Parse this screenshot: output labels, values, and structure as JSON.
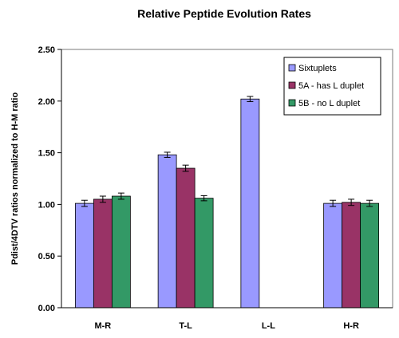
{
  "chart_data": {
    "type": "bar",
    "title": "Relative Peptide Evolution Rates",
    "xlabel": "",
    "ylabel": "Pdist/4DTV ratios  normalized to H-M ratio",
    "ylim": [
      0,
      2.5
    ],
    "ytick_values": [
      0,
      0.5,
      1,
      1.5,
      2,
      2.5
    ],
    "ytick_labels": [
      "0.00",
      "0.50",
      "1.00",
      "1.50",
      "2.00",
      "2.50"
    ],
    "categories": [
      "M-R",
      "T-L",
      "L-L",
      "H-R"
    ],
    "grid": false,
    "legend_position": "top-right",
    "series": [
      {
        "name": "Sixtuplets",
        "color": "#9999ff",
        "values": [
          1.01,
          1.48,
          2.02,
          1.01
        ],
        "errors": [
          0.03,
          0.025,
          0.025,
          0.03
        ]
      },
      {
        "name": "5A - has L duplet",
        "color": "#993366",
        "values": [
          1.05,
          1.35,
          null,
          1.02
        ],
        "errors": [
          0.03,
          0.03,
          null,
          0.03
        ]
      },
      {
        "name": "5B - no L duplet",
        "color": "#339966",
        "values": [
          1.08,
          1.06,
          null,
          1.01
        ],
        "errors": [
          0.03,
          0.025,
          null,
          0.03
        ]
      }
    ]
  }
}
